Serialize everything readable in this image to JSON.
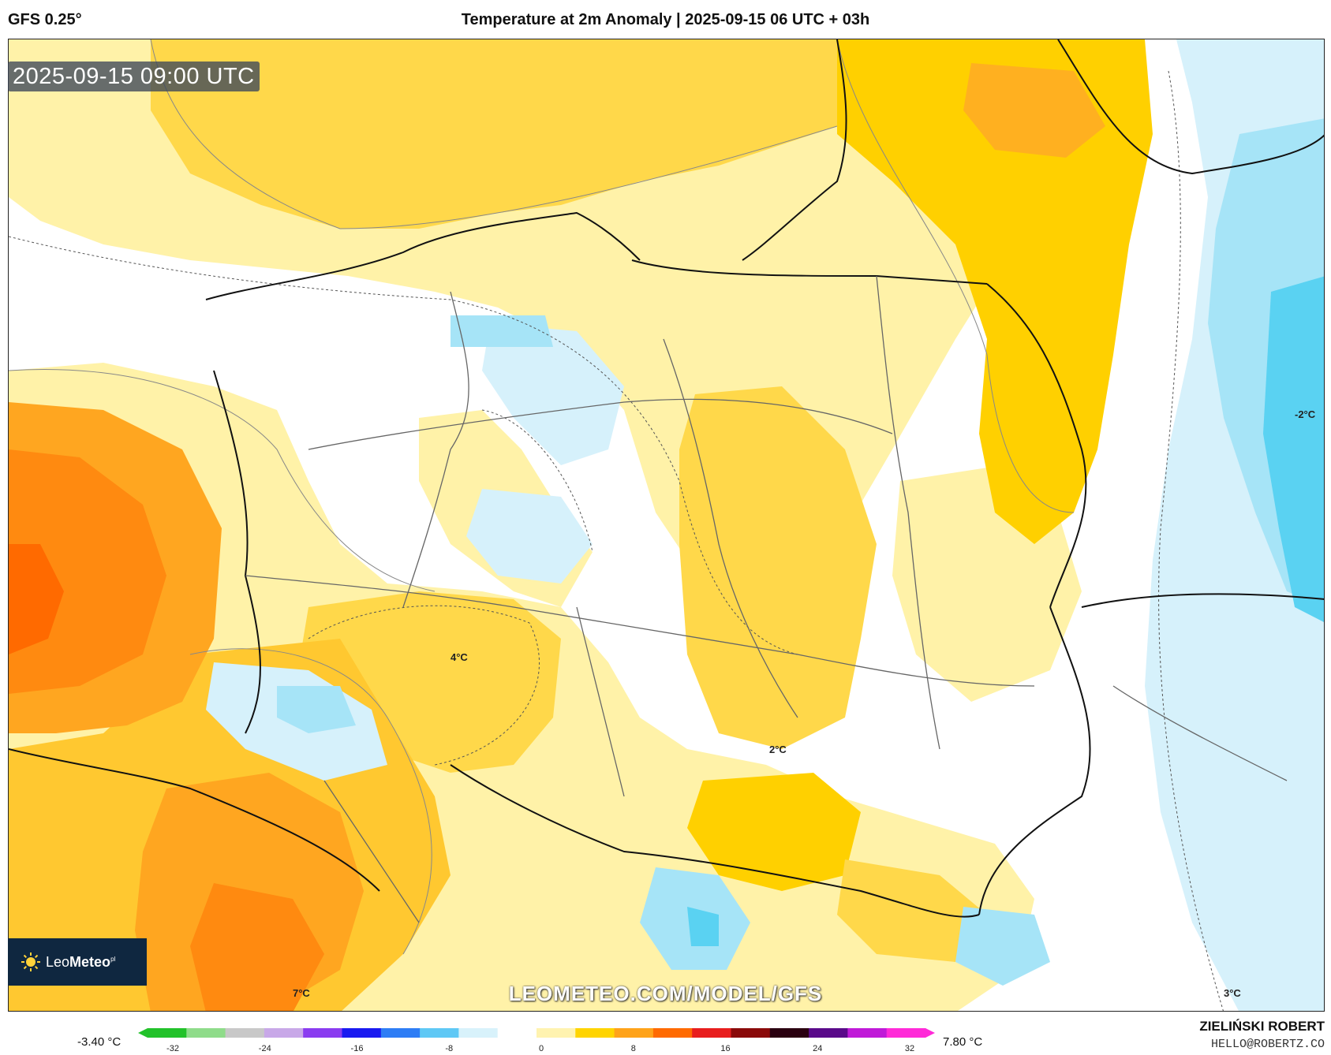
{
  "header": {
    "model": "GFS 0.25°",
    "title": "Temperature at 2m Anomaly | 2025-09-15 06 UTC + 03h"
  },
  "map": {
    "valid_time": "2025-09-15 09:00 UTC",
    "watermark": "LEOMETEO.COM/MODEL/GFS",
    "logo": {
      "brand_light": "Leo",
      "brand_bold": "Meteo",
      "brand_suffix": "pl"
    },
    "contour_labels": [
      "4°C",
      "2°C",
      "-2°C",
      "7°C",
      "3°C"
    ]
  },
  "scale": {
    "min_label": "-3.40 °C",
    "max_label": "7.80 °C",
    "ticks": [
      "-32",
      "-24",
      "-16",
      "-8",
      "0",
      "8",
      "16",
      "24",
      "32"
    ],
    "colors": [
      "#22c22a",
      "#8fdc8a",
      "#c8c8c8",
      "#c8a8e8",
      "#8a3cf0",
      "#1a1af0",
      "#2e7df5",
      "#5fc8f5",
      "#d8f2fb",
      "#ffffff",
      "#fff3b0",
      "#ffd400",
      "#ffa31a",
      "#ff6a00",
      "#e81e1e",
      "#8a0a0a",
      "#2a0010",
      "#5a0a8a",
      "#c01ad8",
      "#ff2ad8"
    ]
  },
  "credits": {
    "author": "ZIELIŃSKI ROBERT",
    "email": "HELLO@ROBERTZ.CO"
  }
}
